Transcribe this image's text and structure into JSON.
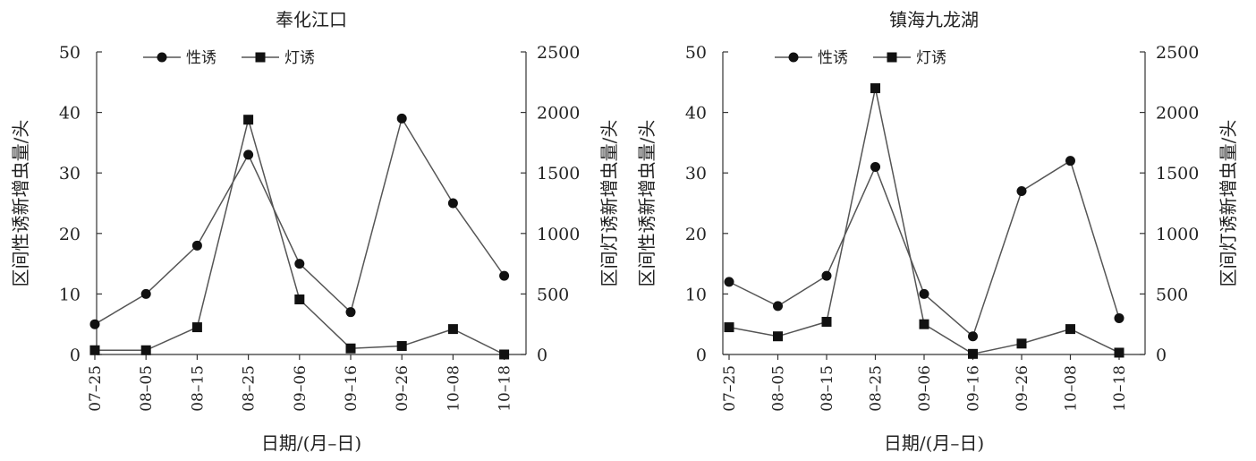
{
  "chart_data": [
    {
      "type": "line",
      "title": "奉化江口",
      "categories": [
        "07–25",
        "08–05",
        "08–15",
        "08–25",
        "09–06",
        "09–16",
        "09–26",
        "10–08",
        "10–18"
      ],
      "xlabel": "日期/(月–日)",
      "ylabel_left": "区间性诱新增虫量/头",
      "ylabel_right": "区间灯诱新增虫量/头",
      "ylim_left": [
        0,
        50
      ],
      "ylim_right": [
        0,
        2500
      ],
      "yticks_left": [
        "0",
        "10",
        "20",
        "30",
        "40",
        "50"
      ],
      "yticks_right": [
        "0",
        "500",
        "1000",
        "1500",
        "2000",
        "2500"
      ],
      "legend_position": "top-left",
      "grid": false,
      "series": [
        {
          "name": "性诱",
          "axis": "left",
          "marker": "circle",
          "values": [
            5,
            10,
            18,
            33,
            15,
            7,
            39,
            25,
            13
          ]
        },
        {
          "name": "灯诱",
          "axis": "right",
          "marker": "square",
          "values": [
            35,
            35,
            225,
            1940,
            455,
            50,
            70,
            210,
            0
          ]
        }
      ]
    },
    {
      "type": "line",
      "title": "镇海九龙湖",
      "categories": [
        "07–25",
        "08–05",
        "08–15",
        "08–25",
        "09–06",
        "09–16",
        "09–26",
        "10–08",
        "10–18"
      ],
      "xlabel": "日期/(月–日)",
      "ylabel_left": "区间性诱新增虫量/头",
      "ylabel_right": "区间灯诱新增虫量/头",
      "ylim_left": [
        0,
        50
      ],
      "ylim_right": [
        0,
        2500
      ],
      "yticks_left": [
        "0",
        "10",
        "20",
        "30",
        "40",
        "50"
      ],
      "yticks_right": [
        "0",
        "500",
        "1000",
        "1500",
        "2000",
        "2500"
      ],
      "legend_position": "top-left",
      "grid": false,
      "series": [
        {
          "name": "性诱",
          "axis": "left",
          "marker": "circle",
          "values": [
            12,
            8,
            13,
            31,
            10,
            3,
            27,
            32,
            6
          ]
        },
        {
          "name": "灯诱",
          "axis": "right",
          "marker": "square",
          "values": [
            225,
            150,
            270,
            2200,
            250,
            5,
            90,
            210,
            15
          ]
        }
      ]
    }
  ]
}
